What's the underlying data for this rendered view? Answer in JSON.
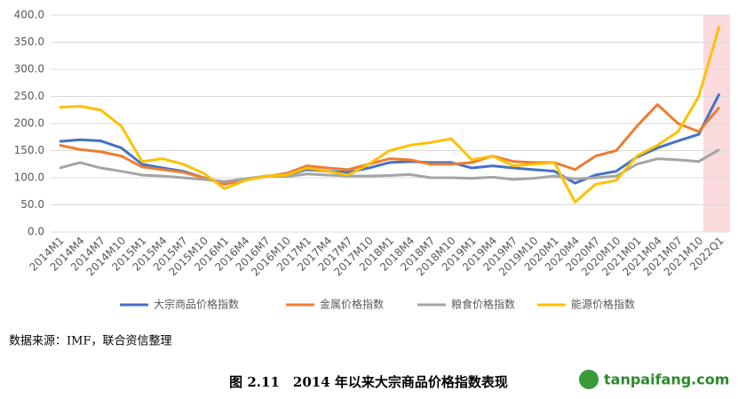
{
  "chart_data": {
    "type": "line",
    "categories": [
      "2014M1",
      "2014M4",
      "2014M7",
      "2014M10",
      "2015M1",
      "2015M4",
      "2015M7",
      "2015M10",
      "2016M1",
      "2016M4",
      "2016M7",
      "2016M10",
      "2017M1",
      "2017M4",
      "2017M7",
      "2017M10",
      "2018M1",
      "2018M4",
      "2018M7",
      "2018M10",
      "2019M1",
      "2019M4",
      "2019M7",
      "2019M10",
      "2020M1",
      "2020M4",
      "2020M7",
      "2020M10",
      "2021M01",
      "2021M04",
      "2021M07",
      "2021M10",
      "2022Q1"
    ],
    "series": [
      {
        "name": "大宗商品价格指数",
        "color": "#4472c4",
        "values": [
          167,
          170,
          168,
          155,
          125,
          118,
          112,
          100,
          88,
          97,
          103,
          105,
          115,
          112,
          110,
          118,
          128,
          130,
          128,
          128,
          118,
          122,
          118,
          115,
          112,
          90,
          105,
          112,
          138,
          155,
          168,
          180,
          255
        ]
      },
      {
        "name": "金属价格指数",
        "color": "#ed7d31",
        "values": [
          160,
          152,
          148,
          140,
          120,
          115,
          110,
          100,
          88,
          97,
          102,
          108,
          122,
          118,
          115,
          125,
          135,
          133,
          125,
          125,
          128,
          140,
          130,
          128,
          128,
          115,
          140,
          150,
          195,
          235,
          200,
          185,
          230
        ]
      },
      {
        "name": "粮食价格指数",
        "color": "#a5a5a5",
        "values": [
          118,
          128,
          118,
          112,
          105,
          103,
          100,
          97,
          93,
          98,
          103,
          102,
          107,
          105,
          103,
          103,
          104,
          106,
          100,
          100,
          99,
          101,
          97,
          99,
          103,
          98,
          100,
          103,
          125,
          135,
          133,
          130,
          152
        ]
      },
      {
        "name": "能源价格指数",
        "color": "#ffc000",
        "values": [
          230,
          232,
          225,
          195,
          130,
          135,
          125,
          108,
          80,
          95,
          103,
          105,
          118,
          112,
          105,
          125,
          150,
          160,
          165,
          172,
          133,
          140,
          122,
          125,
          128,
          55,
          88,
          95,
          140,
          160,
          185,
          250,
          380
        ]
      }
    ],
    "ylim": [
      0,
      400
    ],
    "yticks": [
      {
        "value": 0,
        "label": "0.0"
      },
      {
        "value": 50,
        "label": "50.0"
      },
      {
        "value": 100,
        "label": "100.0"
      },
      {
        "value": 150,
        "label": "150.0"
      },
      {
        "value": 200,
        "label": "200.0"
      },
      {
        "value": 250,
        "label": "250.0"
      },
      {
        "value": 300,
        "label": "300.0"
      },
      {
        "value": 350,
        "label": "350.0"
      },
      {
        "value": 400,
        "label": "400.0"
      }
    ],
    "grid": true
  },
  "source": "数据来源：IMF，联合资信整理",
  "caption": "图 2.11　2014 年以来大宗商品价格指数表现",
  "watermark": "tanpaifang.com"
}
